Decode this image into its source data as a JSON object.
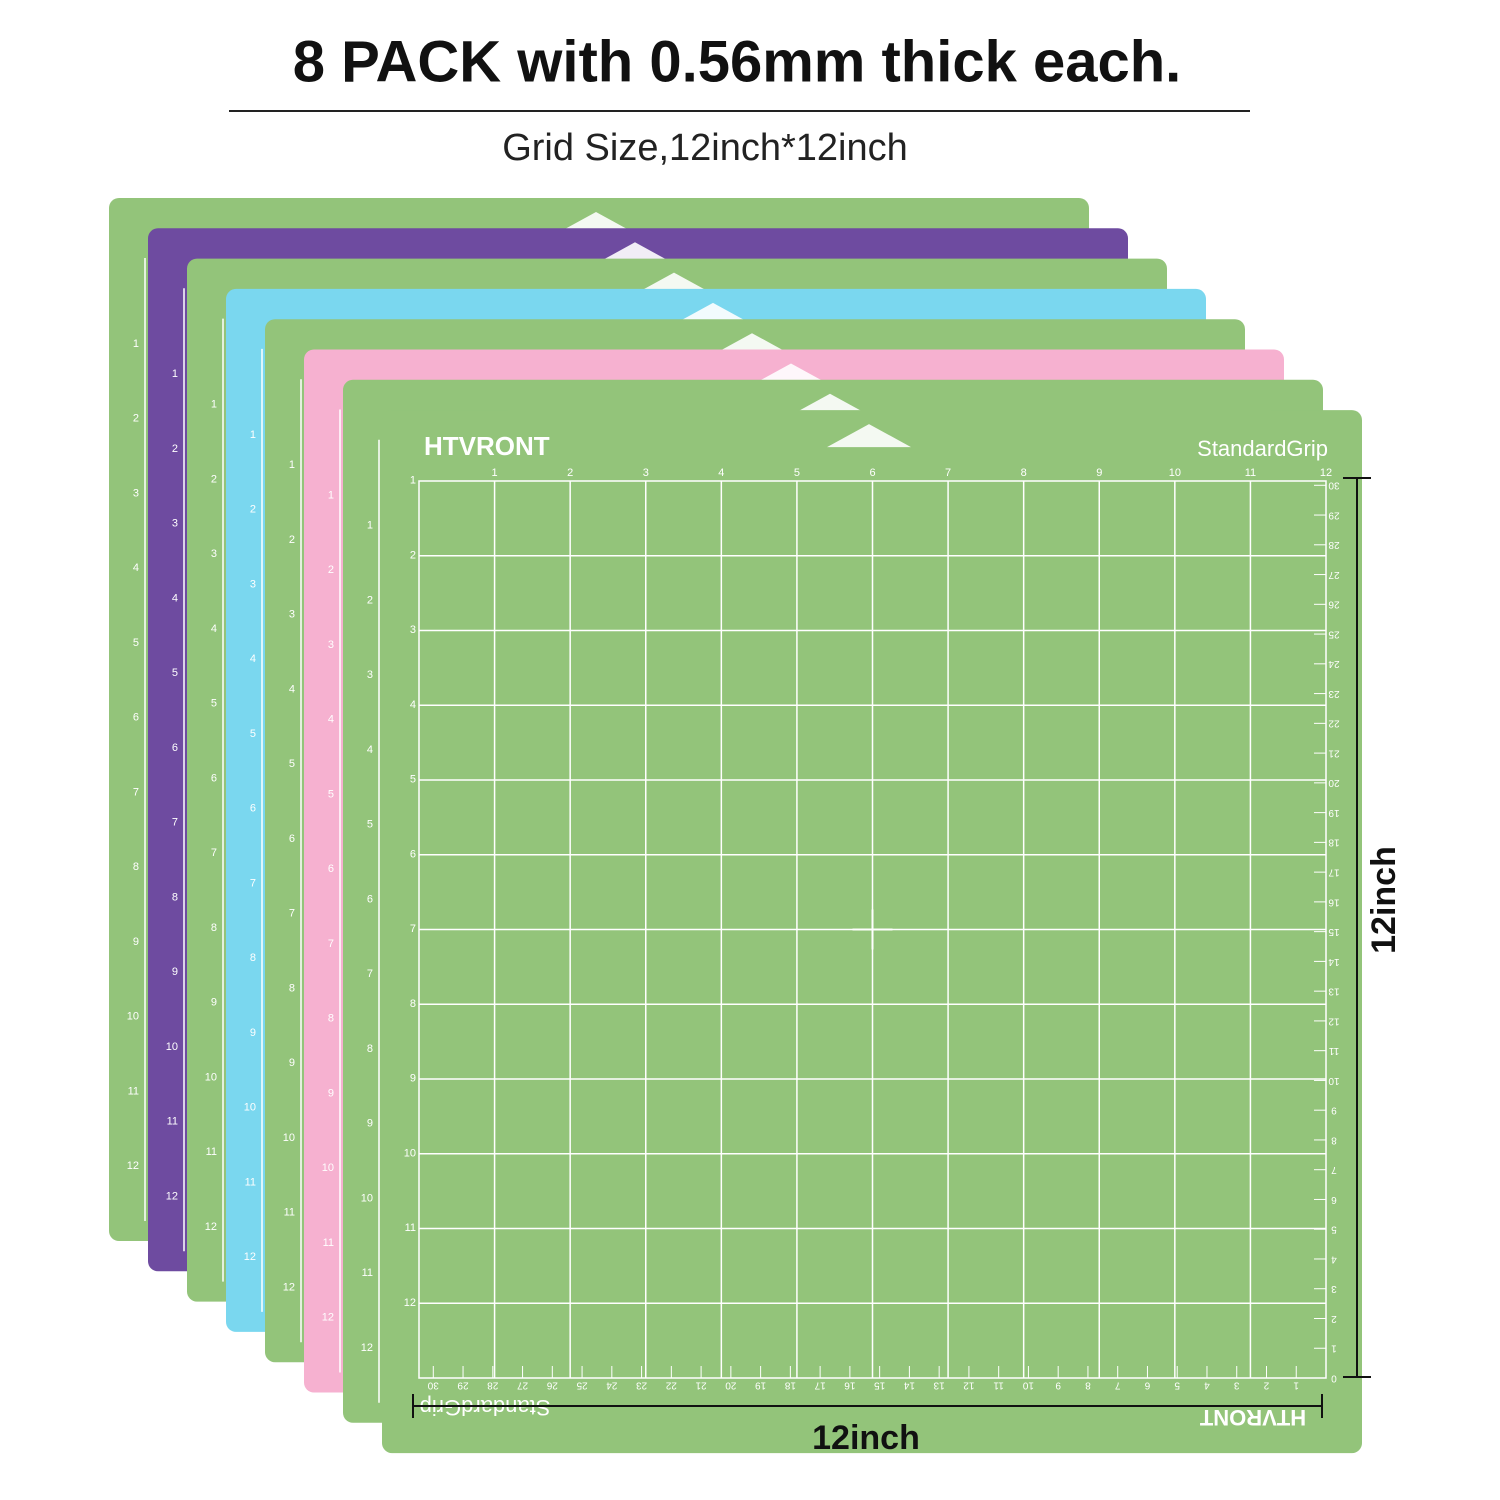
{
  "title": "8 PACK with 0.56mm thick each.",
  "subtitle": "Grid Size,12inch*12inch",
  "mats": [
    {
      "color": "#93c47a"
    },
    {
      "color": "#6e4ba0"
    },
    {
      "color": "#93c47a"
    },
    {
      "color": "#7ad7ef"
    },
    {
      "color": "#93c47a"
    },
    {
      "color": "#f6b1d0"
    },
    {
      "color": "#93c47a"
    },
    {
      "color": "#93c47a"
    }
  ],
  "front_mat": {
    "brand": "HTVRONT",
    "grip": "StandardGrip",
    "inch_ruler": [
      1,
      2,
      3,
      4,
      5,
      6,
      7,
      8,
      9,
      10,
      11,
      12
    ],
    "right_cm_ruler": [
      0,
      1,
      2,
      3,
      4,
      5,
      6,
      7,
      8,
      9,
      10,
      11,
      12,
      13,
      14,
      15,
      16,
      17,
      18,
      19,
      20,
      21,
      22,
      23,
      24,
      25,
      26,
      27,
      28,
      29,
      30
    ],
    "bottom_cm_ruler": [
      1,
      2,
      3,
      4,
      5,
      6,
      7,
      8,
      9,
      10,
      11,
      12,
      13,
      14,
      15,
      16,
      17,
      18,
      19,
      20,
      21,
      22,
      23,
      24,
      25,
      26,
      27,
      28,
      29,
      30
    ]
  },
  "width_label": "12inch",
  "height_label": "12inch"
}
